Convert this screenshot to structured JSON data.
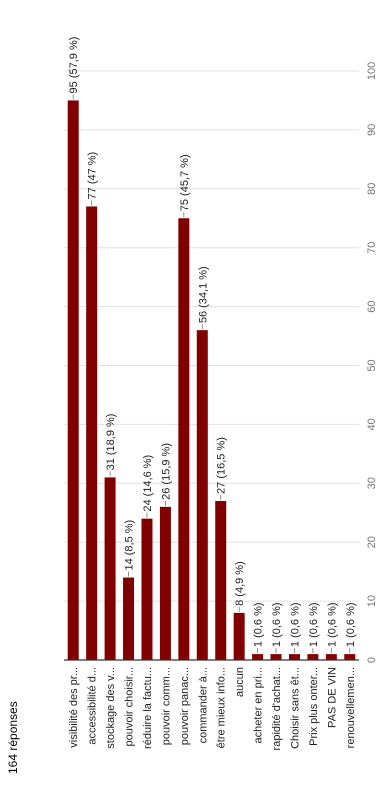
{
  "response_count": "164 réponses",
  "colors": {
    "bar": "#800000",
    "grid": "#e0e0e0",
    "axis": "#333333",
    "text": "#222222",
    "muted": "#757575"
  },
  "chart_data": {
    "type": "bar",
    "orientation": "horizontal",
    "title": "",
    "xlabel": "",
    "ylabel": "",
    "xlim": [
      0,
      100
    ],
    "ticks": [
      "0",
      "10",
      "20",
      "30",
      "40",
      "50",
      "60",
      "70",
      "80",
      "90",
      "100"
    ],
    "grid": true,
    "categories": [
      "visibilité des pr...",
      "accessibilité d...",
      "stockage des v...",
      "pouvoir choisir...",
      "réduire la factu...",
      "pouvoir comm...",
      "pouvoir panac...",
      "commander à...",
      "être mieux info...",
      "aucun",
      "acheter en pri...",
      "rapidité d'achat...",
      "Choisir sans êt...",
      "Prix plus onter...",
      "PAS DE VIN",
      "renouvellemen..."
    ],
    "values": [
      95,
      77,
      31,
      14,
      24,
      26,
      75,
      56,
      27,
      8,
      1,
      1,
      1,
      1,
      1,
      1
    ],
    "data_labels": [
      "95 (57,9 %)",
      "77 (47 %)",
      "31 (18,9 %)",
      "14 (8,5 %)",
      "24 (14,6 %)",
      "26 (15,9 %)",
      "75 (45,7 %)",
      "56 (34,1 %)",
      "27 (16,5 %)",
      "8 (4,9 %)",
      "1 (0,6 %)",
      "1 (0,6 %)",
      "1 (0,6 %)",
      "1 (0,6 %)",
      "1 (0,6 %)",
      "1 (0,6 %)"
    ]
  }
}
